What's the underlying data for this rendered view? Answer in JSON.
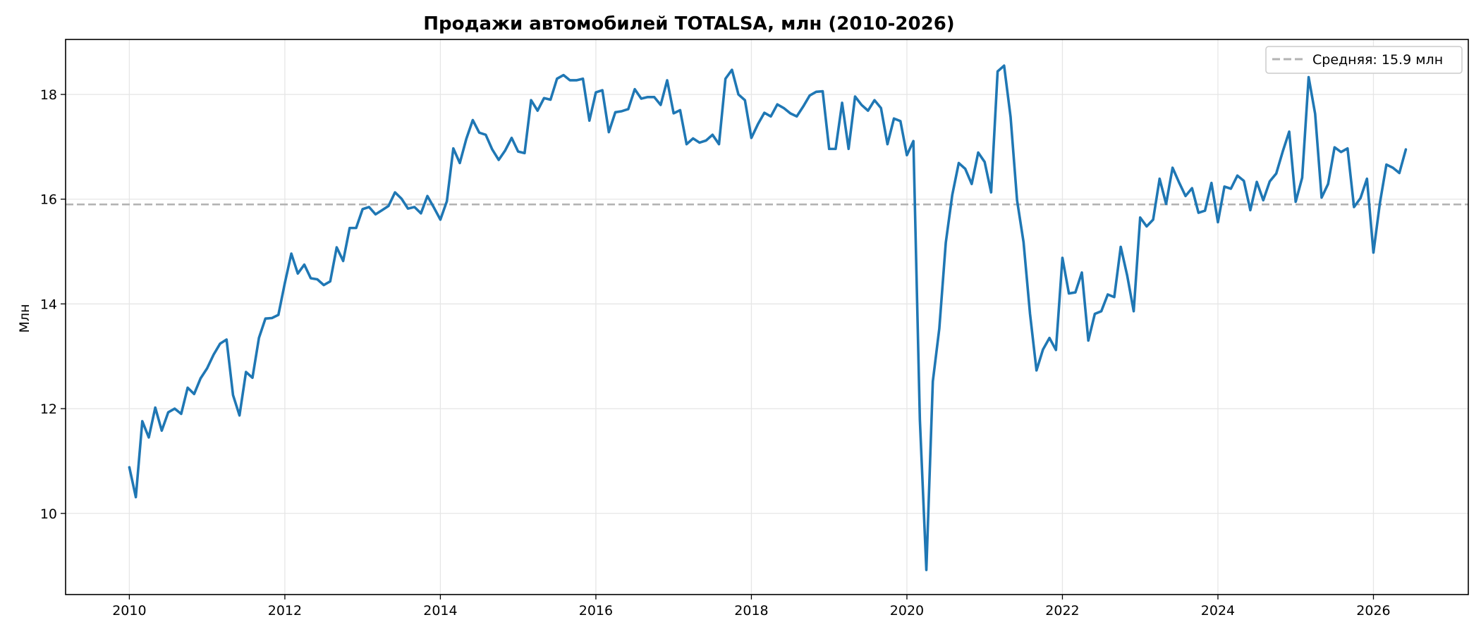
{
  "chart_data": {
    "type": "line",
    "title": "Продажи автомобилей TOTALSA, млн (2010-2026)",
    "xlabel": "",
    "ylabel": "Млн",
    "xlim": [
      2009.18,
      2027.22
    ],
    "ylim": [
      8.45,
      19.05
    ],
    "x_ticks": [
      2010,
      2012,
      2014,
      2016,
      2018,
      2020,
      2022,
      2024,
      2026
    ],
    "y_ticks": [
      10,
      12,
      14,
      16,
      18
    ],
    "grid": true,
    "legend_position": "top-right",
    "colors": {
      "series": "#1f77b4",
      "mean_line": "#b3b3b3"
    },
    "reference_line": {
      "label": "Средняя: 15.9 млн",
      "y": 15.9,
      "style": "dashed"
    },
    "series": [
      {
        "x_start": 2010,
        "x_step_per_year": 12,
        "values": [
          10.88,
          10.31,
          11.76,
          11.45,
          12.02,
          11.58,
          11.93,
          12.0,
          11.9,
          12.4,
          12.28,
          12.58,
          12.77,
          13.03,
          13.24,
          13.32,
          12.26,
          11.87,
          12.7,
          12.59,
          13.35,
          13.72,
          13.73,
          13.79,
          14.4,
          14.96,
          14.58,
          14.75,
          14.49,
          14.47,
          14.36,
          14.43,
          15.08,
          14.82,
          15.45,
          15.45,
          15.81,
          15.85,
          15.71,
          15.79,
          15.87,
          16.13,
          16.01,
          15.82,
          15.85,
          15.73,
          16.06,
          15.84,
          15.61,
          15.96,
          16.97,
          16.69,
          17.15,
          17.51,
          17.27,
          17.23,
          16.95,
          16.75,
          16.93,
          17.17,
          16.91,
          16.88,
          17.89,
          17.69,
          17.93,
          17.9,
          18.3,
          18.37,
          18.27,
          18.27,
          18.3,
          17.5,
          18.04,
          18.08,
          17.28,
          17.66,
          17.68,
          17.72,
          18.1,
          17.92,
          17.95,
          17.95,
          17.8,
          18.27,
          17.64,
          17.7,
          17.05,
          17.16,
          17.08,
          17.12,
          17.23,
          17.05,
          18.3,
          18.47,
          18.0,
          17.89,
          17.17,
          17.43,
          17.65,
          17.58,
          17.81,
          17.74,
          17.64,
          17.58,
          17.77,
          17.98,
          18.05,
          18.06,
          16.96,
          16.96,
          17.84,
          16.96,
          17.96,
          17.8,
          17.69,
          17.89,
          17.74,
          17.05,
          17.54,
          17.49,
          16.84,
          17.11,
          11.79,
          8.92,
          12.52,
          13.53,
          15.17,
          16.08,
          16.69,
          16.58,
          16.29,
          16.89,
          16.71,
          16.13,
          18.44,
          18.55,
          17.57,
          15.98,
          15.18,
          13.81,
          12.73,
          13.13,
          13.35,
          13.12,
          14.88,
          14.2,
          14.22,
          14.6,
          13.3,
          13.81,
          13.86,
          14.18,
          14.13,
          15.09,
          14.54,
          13.86,
          15.65,
          15.48,
          15.61,
          16.39,
          15.91,
          16.6,
          16.32,
          16.06,
          16.21,
          15.74,
          15.78,
          16.31,
          15.56,
          16.24,
          16.2,
          16.45,
          16.35,
          15.79,
          16.33,
          15.98,
          16.34,
          16.49,
          16.91,
          17.29,
          15.95,
          16.41,
          18.33,
          17.63,
          16.03,
          16.29,
          16.99,
          16.9,
          16.97,
          15.85,
          16.02,
          16.39,
          14.98,
          15.93,
          16.66,
          16.6,
          16.5,
          16.95
        ]
      }
    ]
  }
}
